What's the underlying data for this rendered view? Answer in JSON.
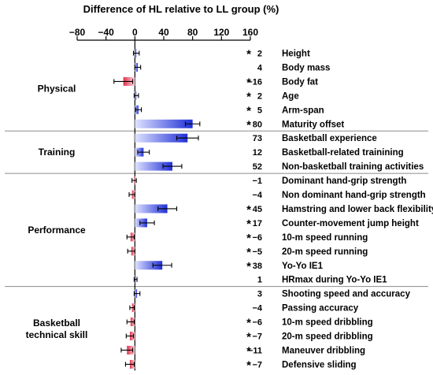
{
  "chart_data": {
    "type": "bar",
    "orientation": "horizontal",
    "title": "Difference of HL relative to LL group (%)",
    "xlim": [
      -80,
      160
    ],
    "x_ticks": [
      "−80",
      "−40",
      "0",
      "40",
      "80",
      "120",
      "160"
    ],
    "x_tick_values": [
      -80,
      -40,
      0,
      40,
      80,
      120,
      160
    ],
    "colors": {
      "positive": "#1f2fd6",
      "negative": "#e0304a",
      "positive_fade": "#dfe3ff",
      "negative_fade": "#fbd9e0",
      "error_bar": "#000000",
      "separator": "#8c8c8c"
    },
    "groups": [
      {
        "name": "Physical",
        "items": [
          {
            "label": "Height",
            "value": 2,
            "value_text": "2",
            "sig": true,
            "err": 4
          },
          {
            "label": "Body mass",
            "value": 4,
            "value_text": "4",
            "sig": false,
            "err": 4
          },
          {
            "label": "Body fat",
            "value": -16,
            "value_text": "−16",
            "sig": true,
            "err": 13
          },
          {
            "label": "Age",
            "value": 2,
            "value_text": "2",
            "sig": true,
            "err": 3
          },
          {
            "label": "Arm-span",
            "value": 5,
            "value_text": "5",
            "sig": true,
            "err": 4
          },
          {
            "label": "Maturity offset",
            "value": 80,
            "value_text": "80",
            "sig": true,
            "err": 10
          }
        ]
      },
      {
        "name": "Training",
        "items": [
          {
            "label": "Basketball experience",
            "value": 73,
            "value_text": "73",
            "sig": false,
            "err": 15
          },
          {
            "label": "Basketball-related trainining",
            "value": 12,
            "value_text": "12",
            "sig": false,
            "err": 8
          },
          {
            "label": "Non-basketball training activities",
            "value": 52,
            "value_text": "52",
            "sig": false,
            "err": 13
          }
        ]
      },
      {
        "name": "Performance",
        "items": [
          {
            "label": "Dominant hand-grip strength",
            "value": -1,
            "value_text": "−1",
            "sig": false,
            "err": 3
          },
          {
            "label": "Non dominant hand-grip strength",
            "value": -4,
            "value_text": "−4",
            "sig": false,
            "err": 4
          },
          {
            "label": "Hamstring and lower back flexibility",
            "value": 45,
            "value_text": "45",
            "sig": true,
            "err": 13
          },
          {
            "label": "Counter-movement jump height",
            "value": 17,
            "value_text": "17",
            "sig": true,
            "err": 10
          },
          {
            "label": "10-m speed running",
            "value": -6,
            "value_text": "−6",
            "sig": true,
            "err": 5
          },
          {
            "label": "20-m speed running",
            "value": -5,
            "value_text": "−5",
            "sig": true,
            "err": 5
          },
          {
            "label": "Yo-Yo IE1",
            "value": 38,
            "value_text": "38",
            "sig": true,
            "err": 13
          },
          {
            "label": "HRmax during Yo-Yo IE1",
            "value": 1,
            "value_text": "1",
            "sig": false,
            "err": 2
          }
        ]
      },
      {
        "name": "Basketball technical skill",
        "name_lines": [
          "Basketball",
          "technical skill"
        ],
        "items": [
          {
            "label": "Shooting speed and accuracy",
            "value": 3,
            "value_text": "3",
            "sig": false,
            "err": 4
          },
          {
            "label": "Passing accuracy",
            "value": -4,
            "value_text": "−4",
            "sig": false,
            "err": 3
          },
          {
            "label": "10-m speed dribbling",
            "value": -6,
            "value_text": "−6",
            "sig": true,
            "err": 5
          },
          {
            "label": "20-m speed dribbling",
            "value": -7,
            "value_text": "−7",
            "sig": true,
            "err": 5
          },
          {
            "label": "Maneuver dribbling",
            "value": -11,
            "value_text": "−11",
            "sig": true,
            "err": 8
          },
          {
            "label": "Defensive sliding",
            "value": -7,
            "value_text": "−7",
            "sig": true,
            "err": 6
          }
        ]
      }
    ]
  }
}
